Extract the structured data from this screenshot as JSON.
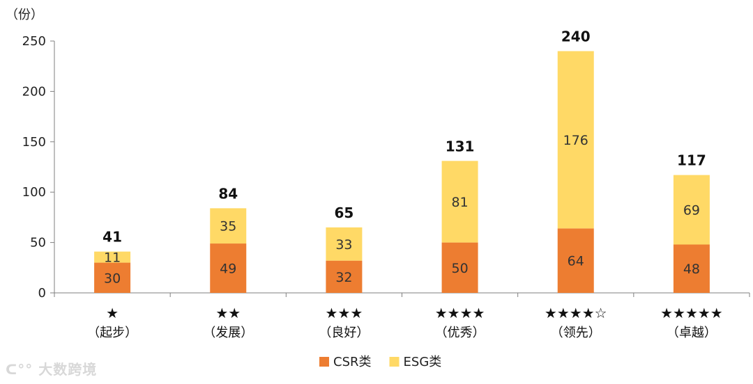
{
  "chart_data": {
    "type": "bar",
    "stacked": true,
    "ylabel": "（份）",
    "ylim": [
      0,
      250
    ],
    "yticks": [
      0,
      50,
      100,
      150,
      200,
      250
    ],
    "categories": [
      {
        "stars": "★",
        "name": "（起步）"
      },
      {
        "stars": "★★",
        "name": "（发展）"
      },
      {
        "stars": "★★★",
        "name": "（良好）"
      },
      {
        "stars": "★★★★",
        "name": "（优秀）"
      },
      {
        "stars": "★★★★☆",
        "name": "（领先）"
      },
      {
        "stars": "★★★★★",
        "name": "（卓越）"
      }
    ],
    "series": [
      {
        "name": "CSR类",
        "color": "#ED7D31",
        "values": [
          30,
          49,
          32,
          50,
          64,
          48
        ]
      },
      {
        "name": "ESG类",
        "color": "#FFD966",
        "values": [
          11,
          35,
          33,
          81,
          176,
          69
        ]
      }
    ],
    "totals": [
      41,
      84,
      65,
      131,
      240,
      117
    ],
    "legend_position": "bottom-center",
    "grid": false
  },
  "watermark": {
    "text": "大数跨境"
  }
}
